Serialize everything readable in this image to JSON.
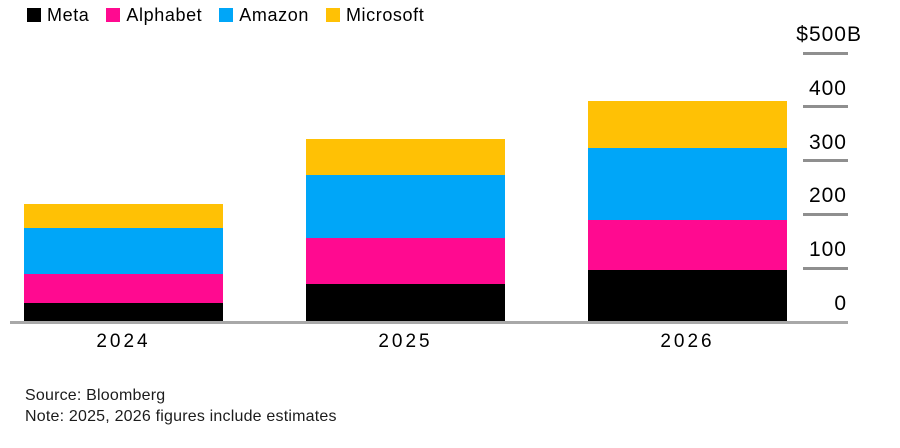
{
  "chart_data": {
    "type": "bar",
    "stacked": true,
    "categories": [
      "2024",
      "2025",
      "2026"
    ],
    "series": [
      {
        "name": "Meta",
        "color": "#000000",
        "values": [
          35,
          70,
          97
        ]
      },
      {
        "name": "Alphabet",
        "color": "#FF0A90",
        "values": [
          54,
          86,
          93
        ]
      },
      {
        "name": "Amazon",
        "color": "#00A6F8",
        "values": [
          86,
          117,
          133
        ]
      },
      {
        "name": "Microsoft",
        "color": "#FFC105",
        "values": [
          45,
          67,
          87
        ]
      }
    ],
    "ylim": [
      0,
      500
    ],
    "y_axis": {
      "position": "right",
      "ticks": [
        {
          "label": "$500B",
          "value": 500
        },
        {
          "label": "400",
          "value": 400
        },
        {
          "label": "300",
          "value": 300
        },
        {
          "label": "200",
          "value": 200
        },
        {
          "label": "100",
          "value": 100
        },
        {
          "label": "0",
          "value": 0
        }
      ]
    },
    "grid": false,
    "legend_position": "top-left",
    "axis_line_color": "#A8A8A8",
    "tick_color": "#8F8F8F"
  },
  "footer": {
    "source": "Source: Bloomberg",
    "note": "Note: 2025, 2026 figures include estimates"
  }
}
